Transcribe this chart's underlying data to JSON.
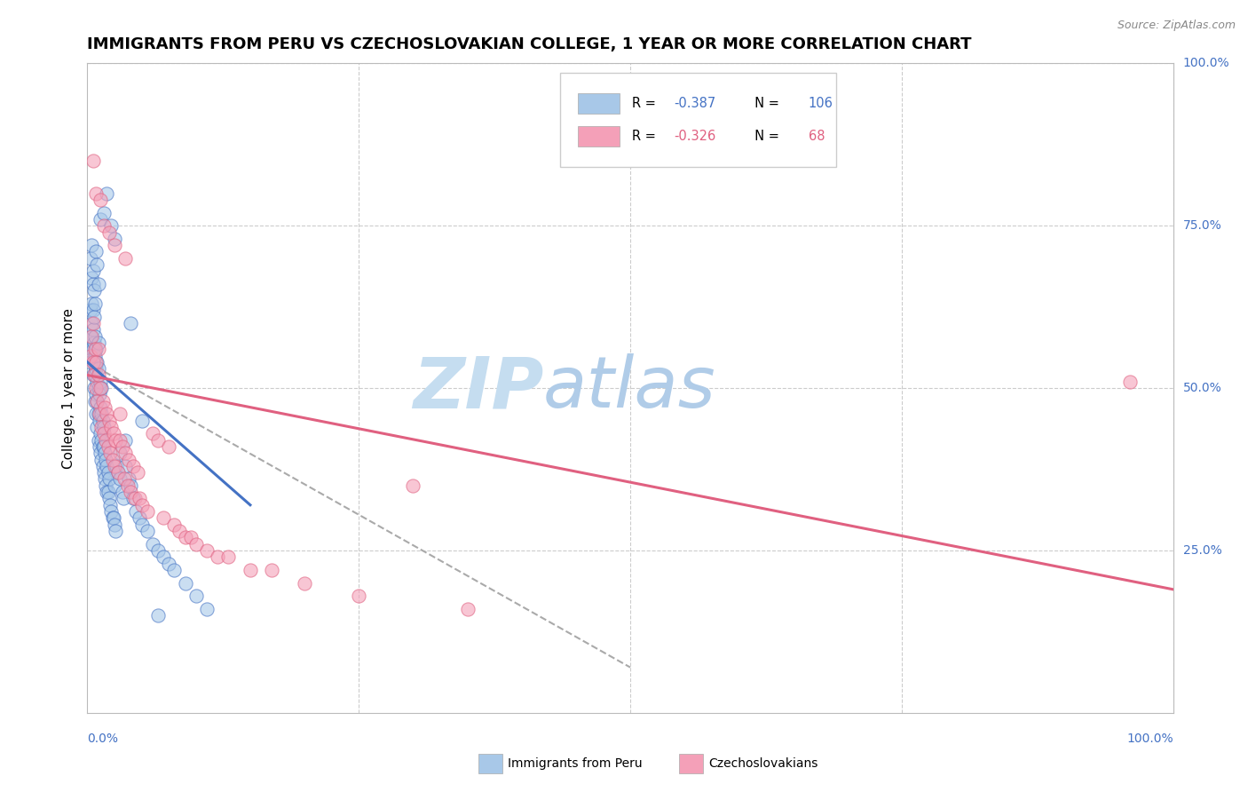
{
  "title": "IMMIGRANTS FROM PERU VS CZECHOSLOVAKIAN COLLEGE, 1 YEAR OR MORE CORRELATION CHART",
  "source": "Source: ZipAtlas.com",
  "ylabel": "College, 1 year or more",
  "r_blue": -0.387,
  "n_blue": 106,
  "r_pink": -0.326,
  "n_pink": 68,
  "blue_color": "#a8c8e8",
  "pink_color": "#f4a0b8",
  "blue_line_color": "#4472c4",
  "pink_line_color": "#e06080",
  "xlim": [
    0.0,
    1.0
  ],
  "ylim": [
    0.0,
    1.0
  ],
  "blue_trendline_x": [
    0.0,
    0.15
  ],
  "blue_trendline_y": [
    0.54,
    0.32
  ],
  "pink_trendline_x": [
    0.0,
    1.0
  ],
  "pink_trendline_y": [
    0.52,
    0.19
  ],
  "dashed_line_x": [
    0.0,
    0.5
  ],
  "dashed_line_y": [
    0.54,
    0.07
  ],
  "title_fontsize": 13,
  "tick_label_color": "#4472c4",
  "right_tick_labels": [
    [
      1.0,
      "100.0%"
    ],
    [
      0.75,
      "75.0%"
    ],
    [
      0.5,
      "50.0%"
    ],
    [
      0.25,
      "25.0%"
    ]
  ],
  "blue_scatter_x": [
    0.003,
    0.003,
    0.003,
    0.004,
    0.004,
    0.004,
    0.004,
    0.005,
    0.005,
    0.005,
    0.005,
    0.005,
    0.006,
    0.006,
    0.006,
    0.006,
    0.007,
    0.007,
    0.007,
    0.007,
    0.008,
    0.008,
    0.008,
    0.008,
    0.009,
    0.009,
    0.009,
    0.009,
    0.01,
    0.01,
    0.01,
    0.01,
    0.01,
    0.011,
    0.011,
    0.011,
    0.012,
    0.012,
    0.012,
    0.012,
    0.013,
    0.013,
    0.013,
    0.013,
    0.014,
    0.014,
    0.014,
    0.015,
    0.015,
    0.015,
    0.016,
    0.016,
    0.017,
    0.017,
    0.018,
    0.018,
    0.019,
    0.019,
    0.02,
    0.02,
    0.021,
    0.022,
    0.023,
    0.024,
    0.025,
    0.025,
    0.026,
    0.027,
    0.028,
    0.03,
    0.03,
    0.032,
    0.033,
    0.035,
    0.035,
    0.038,
    0.04,
    0.042,
    0.045,
    0.048,
    0.05,
    0.055,
    0.06,
    0.065,
    0.07,
    0.075,
    0.08,
    0.09,
    0.1,
    0.11,
    0.003,
    0.004,
    0.005,
    0.006,
    0.007,
    0.008,
    0.009,
    0.01,
    0.012,
    0.015,
    0.018,
    0.022,
    0.025,
    0.04,
    0.05,
    0.065
  ],
  "blue_scatter_y": [
    0.54,
    0.58,
    0.62,
    0.56,
    0.6,
    0.63,
    0.67,
    0.52,
    0.56,
    0.59,
    0.62,
    0.66,
    0.5,
    0.54,
    0.57,
    0.61,
    0.48,
    0.52,
    0.55,
    0.58,
    0.46,
    0.49,
    0.53,
    0.56,
    0.44,
    0.48,
    0.51,
    0.54,
    0.42,
    0.46,
    0.5,
    0.53,
    0.57,
    0.41,
    0.45,
    0.49,
    0.4,
    0.43,
    0.47,
    0.51,
    0.39,
    0.42,
    0.46,
    0.5,
    0.38,
    0.41,
    0.45,
    0.37,
    0.41,
    0.44,
    0.36,
    0.4,
    0.35,
    0.39,
    0.34,
    0.38,
    0.34,
    0.37,
    0.33,
    0.36,
    0.32,
    0.31,
    0.3,
    0.3,
    0.29,
    0.35,
    0.28,
    0.38,
    0.37,
    0.36,
    0.4,
    0.34,
    0.33,
    0.42,
    0.38,
    0.36,
    0.35,
    0.33,
    0.31,
    0.3,
    0.29,
    0.28,
    0.26,
    0.25,
    0.24,
    0.23,
    0.22,
    0.2,
    0.18,
    0.16,
    0.7,
    0.72,
    0.68,
    0.65,
    0.63,
    0.71,
    0.69,
    0.66,
    0.76,
    0.77,
    0.8,
    0.75,
    0.73,
    0.6,
    0.45,
    0.15
  ],
  "pink_scatter_x": [
    0.003,
    0.004,
    0.005,
    0.005,
    0.006,
    0.007,
    0.008,
    0.008,
    0.009,
    0.01,
    0.01,
    0.011,
    0.012,
    0.013,
    0.014,
    0.015,
    0.016,
    0.017,
    0.018,
    0.019,
    0.02,
    0.021,
    0.022,
    0.023,
    0.024,
    0.025,
    0.026,
    0.028,
    0.03,
    0.03,
    0.032,
    0.034,
    0.035,
    0.037,
    0.038,
    0.04,
    0.042,
    0.044,
    0.046,
    0.048,
    0.05,
    0.055,
    0.06,
    0.065,
    0.07,
    0.075,
    0.08,
    0.085,
    0.09,
    0.095,
    0.1,
    0.11,
    0.12,
    0.13,
    0.15,
    0.17,
    0.2,
    0.25,
    0.3,
    0.35,
    0.005,
    0.008,
    0.012,
    0.015,
    0.02,
    0.025,
    0.035,
    0.96
  ],
  "pink_scatter_y": [
    0.55,
    0.58,
    0.54,
    0.6,
    0.52,
    0.56,
    0.5,
    0.54,
    0.48,
    0.52,
    0.56,
    0.46,
    0.5,
    0.44,
    0.48,
    0.43,
    0.47,
    0.42,
    0.46,
    0.41,
    0.45,
    0.4,
    0.44,
    0.39,
    0.43,
    0.38,
    0.42,
    0.37,
    0.42,
    0.46,
    0.41,
    0.36,
    0.4,
    0.35,
    0.39,
    0.34,
    0.38,
    0.33,
    0.37,
    0.33,
    0.32,
    0.31,
    0.43,
    0.42,
    0.3,
    0.41,
    0.29,
    0.28,
    0.27,
    0.27,
    0.26,
    0.25,
    0.24,
    0.24,
    0.22,
    0.22,
    0.2,
    0.18,
    0.35,
    0.16,
    0.85,
    0.8,
    0.79,
    0.75,
    0.74,
    0.72,
    0.7,
    0.51
  ]
}
